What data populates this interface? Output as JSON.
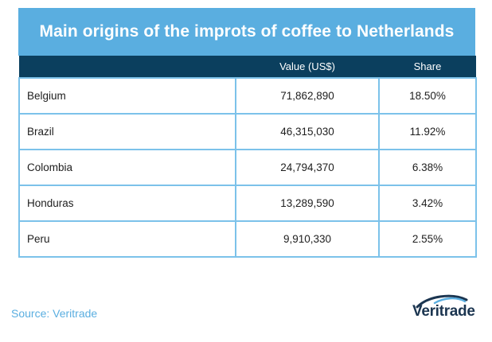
{
  "chart_data": {
    "type": "table",
    "title": "Main origins of the improts of coffee to Netherlands",
    "columns": [
      "",
      "Value (US$)",
      "Share"
    ],
    "rows": [
      {
        "country": "Belgium",
        "value": "71,862,890",
        "share": "18.50%"
      },
      {
        "country": "Brazil",
        "value": "46,315,030",
        "share": "11.92%"
      },
      {
        "country": "Colombia",
        "value": "24,794,370",
        "share": "6.38%"
      },
      {
        "country": "Honduras",
        "value": "13,289,590",
        "share": "3.42%"
      },
      {
        "country": "Peru",
        "value": "9,910,330",
        "share": "2.55%"
      }
    ]
  },
  "footer": {
    "source": "Source: Veritrade",
    "logo_text": "Veritrade"
  },
  "colors": {
    "title_bg": "#5aaee0",
    "header_bg": "#0b3f5e",
    "border": "#7cc2ea",
    "logo": "#1b3550"
  }
}
